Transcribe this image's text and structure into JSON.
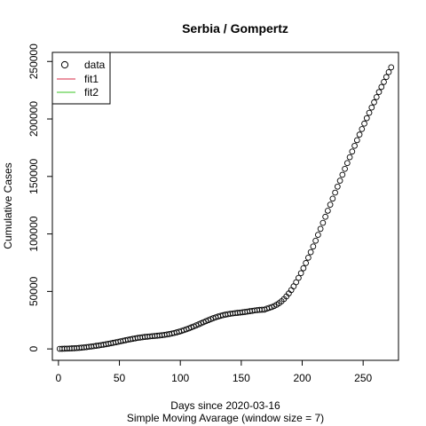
{
  "chart_data": {
    "type": "scatter",
    "title": "Serbia / Gompertz",
    "xlabel": "Days since 2020-03-16",
    "xlabel_sub": "Simple Moving Avarage (window size = 7)",
    "ylabel": "Cumulative Cases",
    "xlim": [
      -5,
      279
    ],
    "ylim": [
      -9920,
      257920
    ],
    "x_ticks": [
      0,
      50,
      100,
      150,
      200,
      250
    ],
    "y_ticks": [
      0,
      50000,
      100000,
      150000,
      200000,
      250000
    ],
    "legend_position": "top-left",
    "legend": [
      {
        "label": "data",
        "kind": "point",
        "color": "#000000"
      },
      {
        "label": "fit1",
        "kind": "line",
        "color": "#DF536B"
      },
      {
        "label": "fit2",
        "kind": "line",
        "color": "#61D04F"
      }
    ],
    "series": [
      {
        "name": "data",
        "marker": "open-circle",
        "color": "#000000",
        "x": [
          1,
          3,
          5,
          7,
          9,
          11,
          13,
          15,
          17,
          19,
          21,
          23,
          25,
          27,
          29,
          31,
          33,
          35,
          37,
          39,
          41,
          43,
          45,
          47,
          49,
          51,
          53,
          55,
          57,
          59,
          61,
          63,
          65,
          67,
          69,
          71,
          73,
          75,
          77,
          79,
          81,
          83,
          85,
          87,
          89,
          91,
          93,
          95,
          97,
          99,
          101,
          103,
          105,
          107,
          109,
          111,
          113,
          115,
          117,
          119,
          121,
          123,
          125,
          127,
          129,
          131,
          133,
          135,
          137,
          139,
          141,
          143,
          145,
          147,
          149,
          151,
          153,
          155,
          157,
          159,
          161,
          163,
          165,
          167,
          169,
          171,
          173,
          175,
          177,
          179,
          181,
          183,
          185,
          187,
          189,
          191,
          193,
          195,
          197,
          199,
          201,
          203,
          205,
          207,
          209,
          211,
          213,
          215,
          217,
          219,
          221,
          223,
          225,
          227,
          229,
          231,
          233,
          235,
          237,
          239,
          241,
          243,
          245,
          247,
          249,
          251,
          253,
          255,
          257,
          259,
          261,
          263,
          265,
          267,
          269,
          271,
          273
        ],
        "y": [
          82,
          132,
          197,
          276,
          368,
          477,
          605,
          750,
          915,
          1107,
          1320,
          1559,
          1817,
          2093,
          2384,
          2693,
          3015,
          3358,
          3713,
          4087,
          4478,
          4883,
          5306,
          5743,
          6189,
          6644,
          7096,
          7546,
          7988,
          8413,
          8818,
          9195,
          9544,
          9862,
          10152,
          10415,
          10652,
          10870,
          11075,
          11275,
          11480,
          11701,
          11949,
          12234,
          12563,
          12946,
          13380,
          13870,
          14416,
          15012,
          15661,
          16357,
          17101,
          17888,
          18713,
          19573,
          20467,
          21376,
          22304,
          23232,
          24152,
          25045,
          25906,
          26720,
          27479,
          28170,
          28791,
          29335,
          29808,
          30212,
          30557,
          30853,
          31115,
          31360,
          31607,
          31870,
          32153,
          32466,
          32795,
          33129,
          33453,
          33743,
          33966,
          34096,
          34193,
          35081,
          35729,
          36426,
          37308,
          38413,
          39774,
          41420,
          43372,
          45646,
          48249,
          51179,
          54425,
          57974,
          61800,
          65882,
          70182,
          74680,
          79345,
          84156,
          89087,
          94117,
          99235,
          104420,
          109653,
          114916,
          120184,
          125444,
          130695,
          135927,
          141136,
          146318,
          151467,
          156581,
          161657,
          166693,
          171687,
          176637,
          181541,
          186397,
          191205,
          195964,
          200672,
          205329,
          209934,
          214488,
          218989,
          223438,
          227835,
          232180,
          236472,
          240713,
          244902
        ]
      },
      {
        "name": "fit1",
        "color": "#DF536B",
        "x": [],
        "y": []
      },
      {
        "name": "fit2",
        "color": "#61D04F",
        "x": [],
        "y": []
      }
    ]
  }
}
